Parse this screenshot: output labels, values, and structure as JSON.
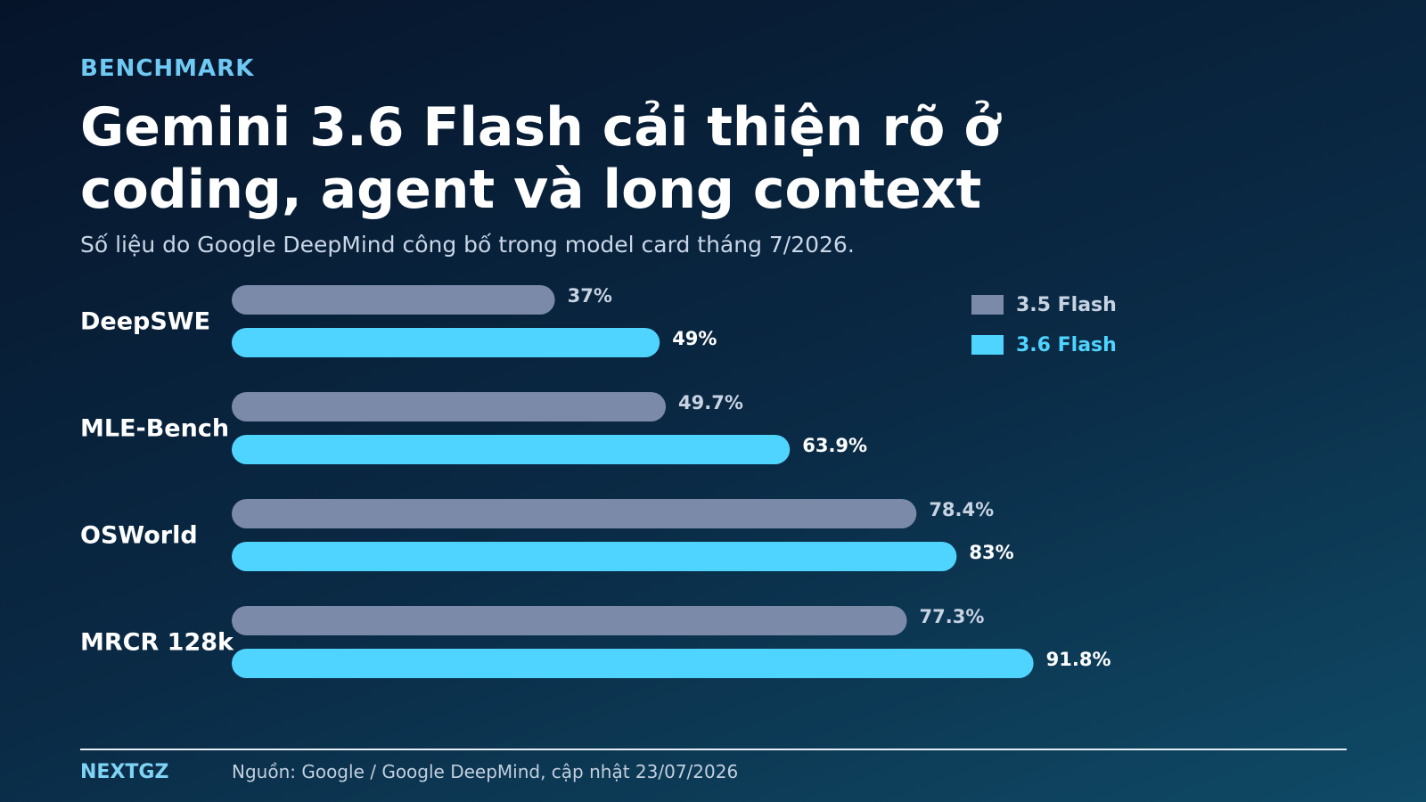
{
  "header": {
    "eyebrow": "BENCHMARK",
    "title": "Gemini 3.6 Flash cải thiện rõ ở coding, agent và long context",
    "subtitle": "Số liệu do Google DeepMind công bố trong model card tháng 7/2026."
  },
  "chart_data": {
    "type": "bar",
    "orientation": "horizontal",
    "categories": [
      "DeepSWE",
      "MLE-Bench",
      "OSWorld",
      "MRCR 128k"
    ],
    "series": [
      {
        "name": "3.5 Flash",
        "values": [
          37,
          49.7,
          78.4,
          77.3
        ],
        "labels": [
          "37%",
          "49.7%",
          "78.4%",
          "77.3%"
        ],
        "color": "#7b8aa8"
      },
      {
        "name": "3.6 Flash",
        "values": [
          49,
          63.9,
          83,
          91.8
        ],
        "labels": [
          "49%",
          "63.9%",
          "83%",
          "91.8%"
        ],
        "color": "#4fd4ff"
      }
    ],
    "xlim": [
      0,
      100
    ],
    "grid": false,
    "legend_position": "top-right"
  },
  "footer": {
    "brand": "NEXTGZ",
    "source": "Nguồn: Google / Google DeepMind, cập nhật 23/07/2026"
  }
}
